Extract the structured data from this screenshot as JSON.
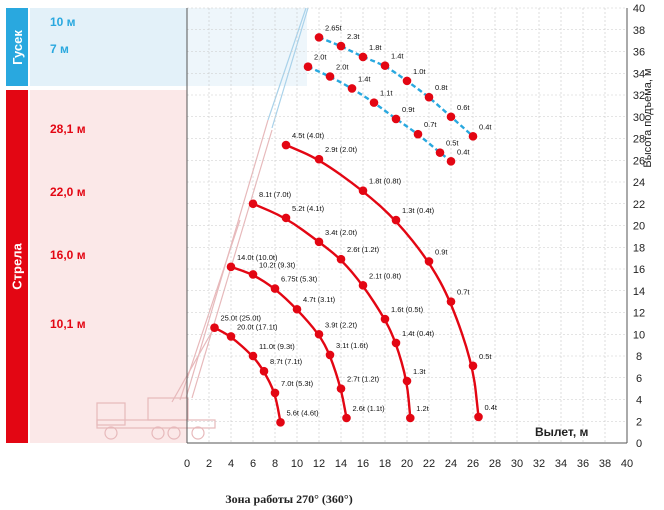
{
  "colors": {
    "jib": "#29a8df",
    "main": "#e30613",
    "jib_band": "#e3f1f9",
    "main_band": "#fbe8e8",
    "grid": "#c9c9c9",
    "axis_text": "#222222",
    "crane": "#e7b9bb"
  },
  "side_tabs": {
    "jib": "Гусек",
    "main": "Стрела"
  },
  "boom_lengths": {
    "jib": [
      "10 м",
      "7 м"
    ],
    "main": [
      "28,1 м",
      "22,0 м",
      "16,0 м",
      "10,1 м"
    ]
  },
  "chart_data": {
    "type": "line",
    "xlabel": "Вылет, м",
    "ylabel": "Высота подъема, м",
    "caption": "Зона работы 270° (360°)",
    "xlim": [
      0,
      40
    ],
    "ylim": [
      0,
      40
    ],
    "x_ticks": [
      "0",
      "2",
      "4",
      "6",
      "8",
      "10",
      "12",
      "14",
      "16",
      "18",
      "20",
      "22",
      "24",
      "26",
      "28",
      "30",
      "32",
      "34",
      "36",
      "38",
      "40"
    ],
    "y_ticks": [
      "0",
      "2",
      "4",
      "6",
      "8",
      "10",
      "12",
      "14",
      "16",
      "18",
      "20",
      "22",
      "24",
      "26",
      "28",
      "30",
      "32",
      "34",
      "36",
      "38",
      "40"
    ],
    "grid": true,
    "series": [
      {
        "name": "10 м",
        "kind": "jib",
        "points": [
          {
            "x": 12.0,
            "y": 37.3,
            "label": "2.65t"
          },
          {
            "x": 14.0,
            "y": 36.5,
            "label": "2.3t"
          },
          {
            "x": 16.0,
            "y": 35.5,
            "label": "1.8t"
          },
          {
            "x": 18.0,
            "y": 34.7,
            "label": "1.4t"
          },
          {
            "x": 20.0,
            "y": 33.3,
            "label": "1.0t"
          },
          {
            "x": 22.0,
            "y": 31.8,
            "label": "0.8t"
          },
          {
            "x": 24.0,
            "y": 30.0,
            "label": "0.6t"
          },
          {
            "x": 26.0,
            "y": 28.2,
            "label": "0.4t"
          }
        ]
      },
      {
        "name": "7 м",
        "kind": "jib",
        "points": [
          {
            "x": 11.0,
            "y": 34.6,
            "label": "2.0t"
          },
          {
            "x": 13.0,
            "y": 33.7,
            "label": "2.0t"
          },
          {
            "x": 15.0,
            "y": 32.6,
            "label": "1.4t"
          },
          {
            "x": 17.0,
            "y": 31.3,
            "label": "1.1t"
          },
          {
            "x": 19.0,
            "y": 29.8,
            "label": "0.9t"
          },
          {
            "x": 21.0,
            "y": 28.4,
            "label": "0.7t"
          },
          {
            "x": 23.0,
            "y": 26.7,
            "label": "0.5t"
          },
          {
            "x": 24.0,
            "y": 25.9,
            "label": "0.4t"
          }
        ]
      },
      {
        "name": "28,1 м",
        "kind": "main",
        "points": [
          {
            "x": 9.0,
            "y": 27.4,
            "label": "4.5t (4.0t)"
          },
          {
            "x": 12.0,
            "y": 26.1,
            "label": "2.9t (2.0t)"
          },
          {
            "x": 16.0,
            "y": 23.2,
            "label": "1.8t (0.8t)"
          },
          {
            "x": 19.0,
            "y": 20.5,
            "label": "1.3t (0.4t)"
          },
          {
            "x": 22.0,
            "y": 16.7,
            "label": "0.9t"
          },
          {
            "x": 24.0,
            "y": 13.0,
            "label": "0.7t"
          },
          {
            "x": 26.0,
            "y": 7.1,
            "label": "0.5t"
          },
          {
            "x": 26.5,
            "y": 2.4,
            "label": "0.4t"
          }
        ]
      },
      {
        "name": "22,0 м",
        "kind": "main",
        "points": [
          {
            "x": 6.0,
            "y": 22.0,
            "label": "8.1t (7.0t)"
          },
          {
            "x": 9.0,
            "y": 20.7,
            "label": "5.2t (4.1t)"
          },
          {
            "x": 12.0,
            "y": 18.5,
            "label": "3.4t (2.0t)"
          },
          {
            "x": 14.0,
            "y": 16.9,
            "label": "2.6t (1.2t)"
          },
          {
            "x": 16.0,
            "y": 14.5,
            "label": "2.1t (0.8t)"
          },
          {
            "x": 18.0,
            "y": 11.4,
            "label": "1.6t (0.5t)"
          },
          {
            "x": 19.0,
            "y": 9.2,
            "label": "1.4t (0.4t)"
          },
          {
            "x": 20.0,
            "y": 5.7,
            "label": "1.3t"
          },
          {
            "x": 20.3,
            "y": 2.3,
            "label": "1.2t"
          }
        ]
      },
      {
        "name": "16,0 м",
        "kind": "main",
        "points": [
          {
            "x": 4.0,
            "y": 16.2,
            "label": "14.0t (10.0t)"
          },
          {
            "x": 6.0,
            "y": 15.5,
            "label": "10.2t (9.3t)"
          },
          {
            "x": 8.0,
            "y": 14.2,
            "label": "6.75t (5.3t)"
          },
          {
            "x": 10.0,
            "y": 12.3,
            "label": "4.7t (3.1t)"
          },
          {
            "x": 12.0,
            "y": 10.0,
            "label": "3.9t (2.2t)"
          },
          {
            "x": 13.0,
            "y": 8.1,
            "label": "3.1t (1.6t)"
          },
          {
            "x": 14.0,
            "y": 5.0,
            "label": "2.7t (1.2t)"
          },
          {
            "x": 14.5,
            "y": 2.3,
            "label": "2.6t (1.1t)"
          }
        ]
      },
      {
        "name": "10,1 м",
        "kind": "main",
        "points": [
          {
            "x": 2.5,
            "y": 10.6,
            "label": "25.0t (25.0t)"
          },
          {
            "x": 4.0,
            "y": 9.8,
            "label": "20.0t (17.1t)"
          },
          {
            "x": 6.0,
            "y": 8.0,
            "label": "11.0t (9.3t)"
          },
          {
            "x": 7.0,
            "y": 6.6,
            "label": "8.7t (7.1t)"
          },
          {
            "x": 8.0,
            "y": 4.6,
            "label": "7.0t (5.3t)"
          },
          {
            "x": 8.5,
            "y": 1.9,
            "label": "5.6t (4.6t)"
          }
        ]
      }
    ]
  }
}
